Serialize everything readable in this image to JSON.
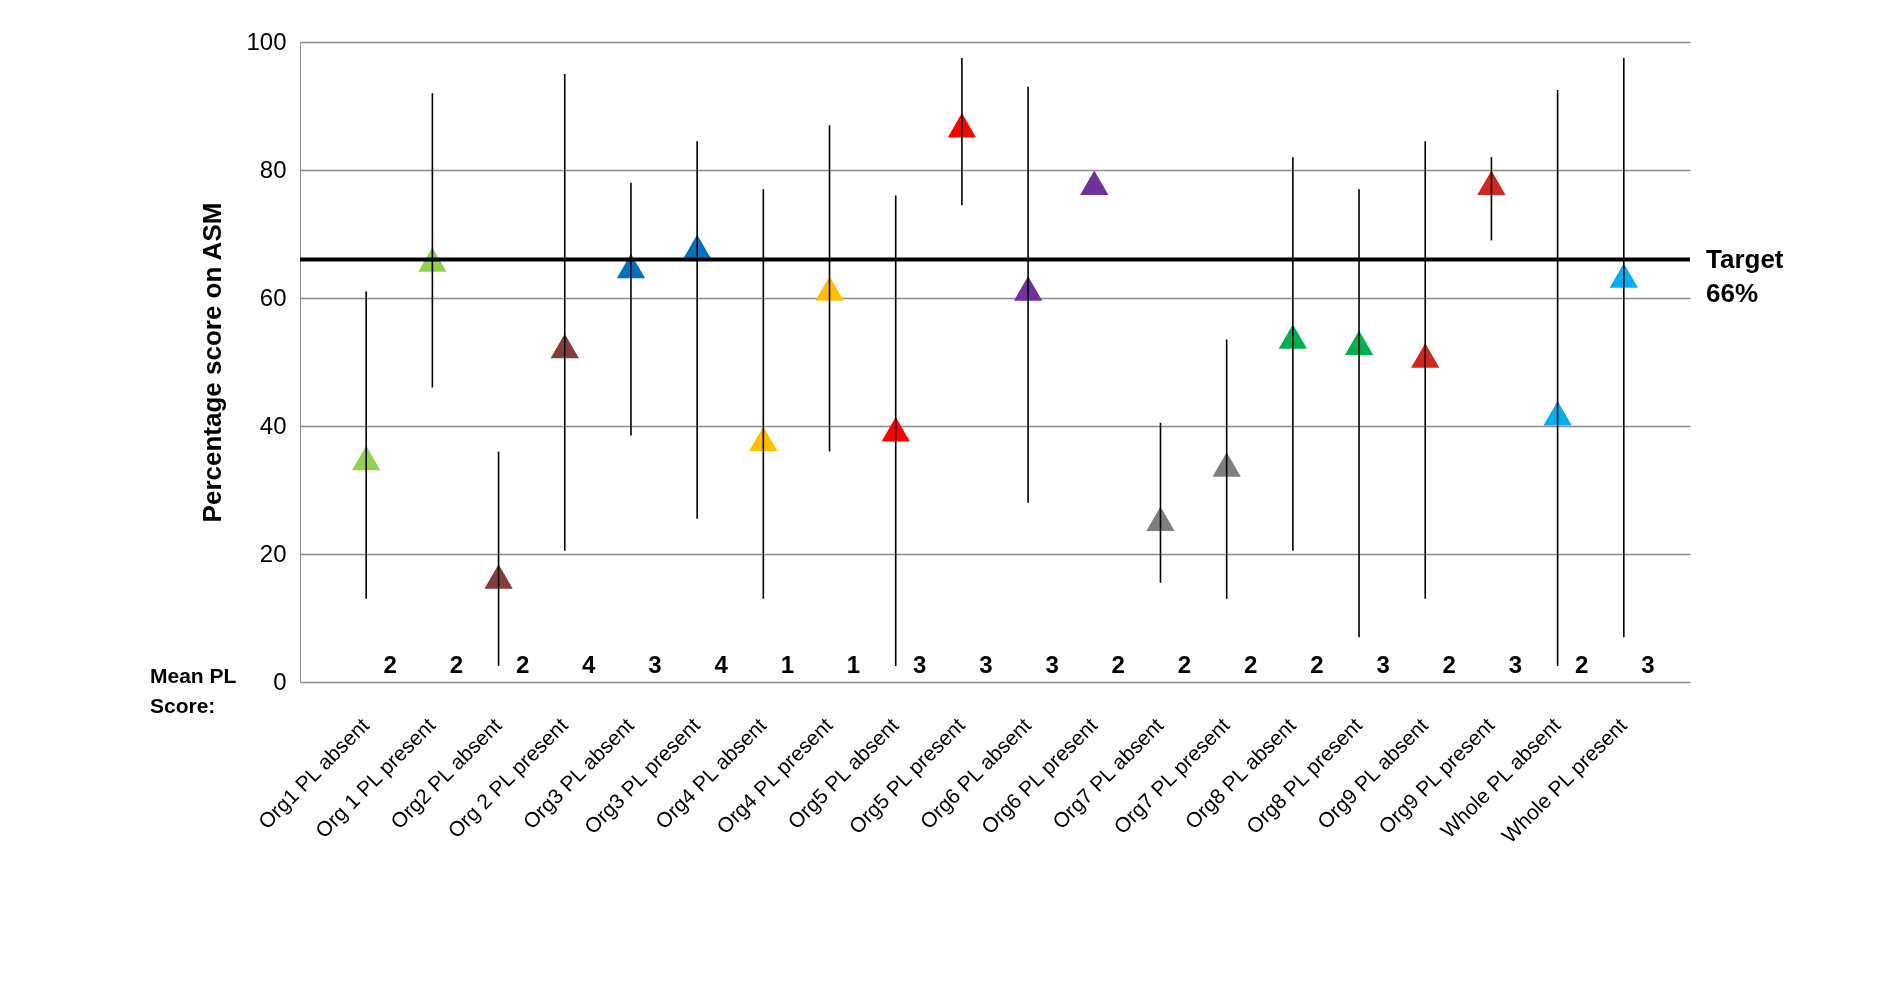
{
  "chart_data": {
    "type": "scatter",
    "ylabel": "Percentage score on ASM",
    "categories": [
      "Org1  PL absent",
      "Org 1 PL present",
      "Org2  PL absent",
      "Org 2 PL present",
      "Org3  PL absent",
      "Org3 PL present",
      "Org4  PL absent",
      "Org4 PL present",
      "Org5  PL absent",
      "Org5 PL present",
      "Org6  PL absent",
      "Org6 PL present",
      "Org7  PL absent",
      "Org7 PL present",
      "Org8  PL absent",
      "Org8 PL present",
      "Org9  PL absent",
      "Org9 PL present",
      "Whole  PL absent",
      "Whole PL present"
    ],
    "values": [
      35,
      66,
      16.5,
      52.5,
      65,
      68,
      38,
      61.5,
      39.5,
      87,
      61.5,
      78,
      25.5,
      34,
      54,
      53,
      51,
      78,
      42,
      63.5
    ],
    "errors": [
      [
        13,
        61
      ],
      [
        46,
        92
      ],
      [
        2.5,
        36
      ],
      [
        20.5,
        95
      ],
      [
        38.5,
        78
      ],
      [
        25.5,
        84.5
      ],
      [
        13,
        77
      ],
      [
        36,
        87
      ],
      [
        2.5,
        76
      ],
      [
        74.5,
        97.5
      ],
      [
        28,
        93
      ],
      null,
      [
        15.5,
        40.5
      ],
      [
        13,
        53.5
      ],
      [
        20.5,
        82
      ],
      [
        7,
        77
      ],
      [
        13,
        84.5
      ],
      [
        69,
        82
      ],
      [
        2.5,
        92.5
      ],
      [
        7,
        97.5
      ]
    ],
    "colors": [
      "#92d050",
      "#92d050",
      "#843c3c",
      "#843c3c",
      "#0070c0",
      "#0070c0",
      "#ffc000",
      "#ffc000",
      "#ff0000",
      "#ff0000",
      "#7030a0",
      "#7030a0",
      "#7f7f7f",
      "#7f7f7f",
      "#00b050",
      "#00b050",
      "#d0281e",
      "#d0281e",
      "#00b0f0",
      "#00b0f0"
    ],
    "marker": "triangle",
    "ylim": [
      0,
      100
    ],
    "yticks": [
      0,
      20,
      40,
      60,
      80,
      100
    ],
    "grid": "y",
    "ref_lines": [
      {
        "axis": "y",
        "value": 66,
        "label": "Target 66%",
        "color": "#000000"
      }
    ],
    "annotations": [
      "Mean PL Score:",
      "2",
      "2",
      "2",
      "4",
      "3",
      "4",
      "1",
      "1",
      "3",
      "3",
      "3",
      "2",
      "2",
      "2",
      "2",
      "3",
      "2",
      "3",
      "2",
      "3"
    ]
  }
}
